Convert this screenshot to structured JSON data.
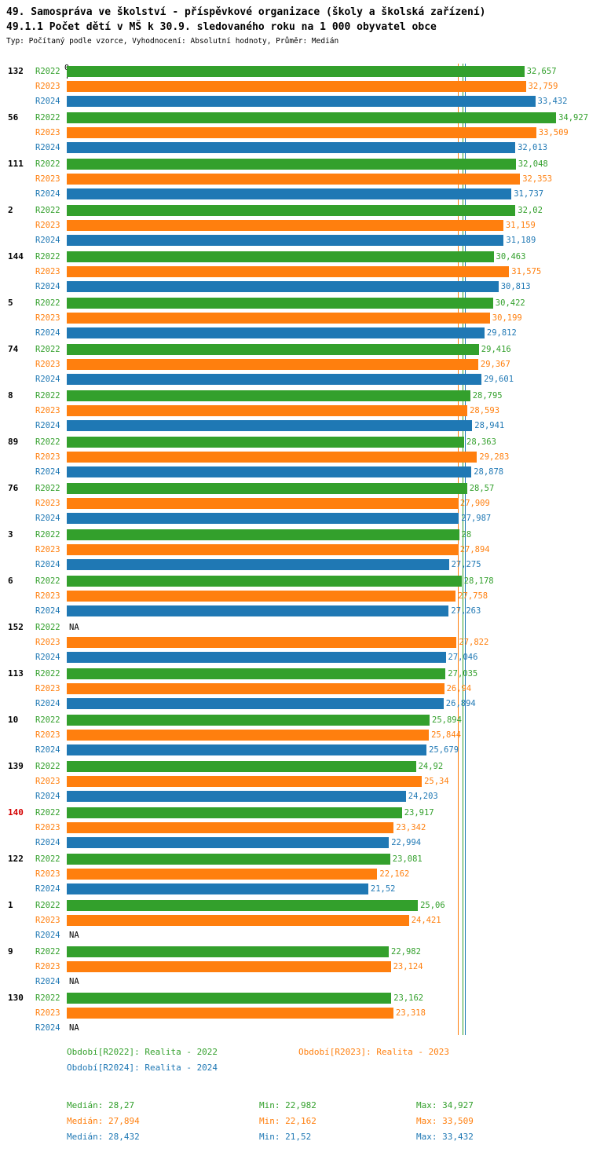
{
  "header": {
    "title1": "49. Samospráva ve školství - příspěvkové organizace (školy a školská zařízení)",
    "title2": "49.1.1 Počet dětí v MŠ k 30.9. sledovaného roku na 1 000 obyvatel obce",
    "meta": "Typ: Počítaný podle vzorce, Vyhodnocení: Absolutní hodnoty, Průměr: Medián"
  },
  "colors": {
    "R2022": "#33a02c",
    "R2023": "#ff7f0e",
    "R2024": "#1f78b4",
    "highlight_id": "#d40000",
    "text": "#000000"
  },
  "chart_data": {
    "type": "bar",
    "orientation": "horizontal",
    "axis_zero_label": "0",
    "xlim": [
      0,
      35.2
    ],
    "grid": false,
    "series_names": [
      "R2022",
      "R2023",
      "R2024"
    ],
    "medians": [
      {
        "series": "R2022",
        "value": 28.27
      },
      {
        "series": "R2023",
        "value": 27.894
      },
      {
        "series": "R2024",
        "value": 28.432
      }
    ],
    "groups": [
      {
        "id": "132",
        "highlight": false,
        "values": [
          32.657,
          32.759,
          33.432
        ],
        "labels": [
          "32,657",
          "32,759",
          "33,432"
        ]
      },
      {
        "id": "56",
        "highlight": false,
        "values": [
          34.927,
          33.509,
          32.013
        ],
        "labels": [
          "34,927",
          "33,509",
          "32,013"
        ]
      },
      {
        "id": "111",
        "highlight": false,
        "values": [
          32.048,
          32.353,
          31.737
        ],
        "labels": [
          "32,048",
          "32,353",
          "31,737"
        ]
      },
      {
        "id": "2",
        "highlight": false,
        "values": [
          32.02,
          31.159,
          31.189
        ],
        "labels": [
          "32,02",
          "31,159",
          "31,189"
        ]
      },
      {
        "id": "144",
        "highlight": false,
        "values": [
          30.463,
          31.575,
          30.813
        ],
        "labels": [
          "30,463",
          "31,575",
          "30,813"
        ]
      },
      {
        "id": "5",
        "highlight": false,
        "values": [
          30.422,
          30.199,
          29.812
        ],
        "labels": [
          "30,422",
          "30,199",
          "29,812"
        ]
      },
      {
        "id": "74",
        "highlight": false,
        "values": [
          29.416,
          29.367,
          29.601
        ],
        "labels": [
          "29,416",
          "29,367",
          "29,601"
        ]
      },
      {
        "id": "8",
        "highlight": false,
        "values": [
          28.795,
          28.593,
          28.941
        ],
        "labels": [
          "28,795",
          "28,593",
          "28,941"
        ]
      },
      {
        "id": "89",
        "highlight": false,
        "values": [
          28.363,
          29.283,
          28.878
        ],
        "labels": [
          "28,363",
          "29,283",
          "28,878"
        ]
      },
      {
        "id": "76",
        "highlight": false,
        "values": [
          28.57,
          27.909,
          27.987
        ],
        "labels": [
          "28,57",
          "27,909",
          "27,987"
        ]
      },
      {
        "id": "3",
        "highlight": false,
        "values": [
          28,
          27.894,
          27.275
        ],
        "labels": [
          "28",
          "27,894",
          "27,275"
        ]
      },
      {
        "id": "6",
        "highlight": false,
        "values": [
          28.178,
          27.758,
          27.263
        ],
        "labels": [
          "28,178",
          "27,758",
          "27,263"
        ]
      },
      {
        "id": "152",
        "highlight": false,
        "values": [
          null,
          27.822,
          27.046
        ],
        "labels": [
          "NA",
          "27,822",
          "27,046"
        ]
      },
      {
        "id": "113",
        "highlight": false,
        "values": [
          27.035,
          26.94,
          26.894
        ],
        "labels": [
          "27,035",
          "26,94",
          "26,894"
        ]
      },
      {
        "id": "10",
        "highlight": false,
        "values": [
          25.894,
          25.844,
          25.679
        ],
        "labels": [
          "25,894",
          "25,844",
          "25,679"
        ]
      },
      {
        "id": "139",
        "highlight": false,
        "values": [
          24.92,
          25.34,
          24.203
        ],
        "labels": [
          "24,92",
          "25,34",
          "24,203"
        ]
      },
      {
        "id": "140",
        "highlight": true,
        "values": [
          23.917,
          23.342,
          22.994
        ],
        "labels": [
          "23,917",
          "23,342",
          "22,994"
        ]
      },
      {
        "id": "122",
        "highlight": false,
        "values": [
          23.081,
          22.162,
          21.52
        ],
        "labels": [
          "23,081",
          "22,162",
          "21,52"
        ]
      },
      {
        "id": "1",
        "highlight": false,
        "values": [
          25.06,
          24.421,
          null
        ],
        "labels": [
          "25,06",
          "24,421",
          "NA"
        ]
      },
      {
        "id": "9",
        "highlight": false,
        "values": [
          22.982,
          23.124,
          null
        ],
        "labels": [
          "22,982",
          "23,124",
          "NA"
        ]
      },
      {
        "id": "130",
        "highlight": false,
        "values": [
          23.162,
          23.318,
          null
        ],
        "labels": [
          "23,162",
          "23,318",
          "NA"
        ]
      }
    ]
  },
  "legend": {
    "items": [
      {
        "series": "R2022",
        "label": "Období[R2022]: Realita - 2022"
      },
      {
        "series": "R2023",
        "label": "Období[R2023]: Realita - 2023"
      },
      {
        "series": "R2024",
        "label": "Období[R2024]: Realita - 2024"
      }
    ]
  },
  "stats": {
    "rows": [
      {
        "series": "R2022",
        "median": "Medián: 28,27",
        "min": "Min: 22,982",
        "max": "Max: 34,927"
      },
      {
        "series": "R2023",
        "median": "Medián: 27,894",
        "min": "Min: 22,162",
        "max": "Max: 33,509"
      },
      {
        "series": "R2024",
        "median": "Medián: 28,432",
        "min": "Min: 21,52",
        "max": "Max: 33,432"
      }
    ]
  }
}
